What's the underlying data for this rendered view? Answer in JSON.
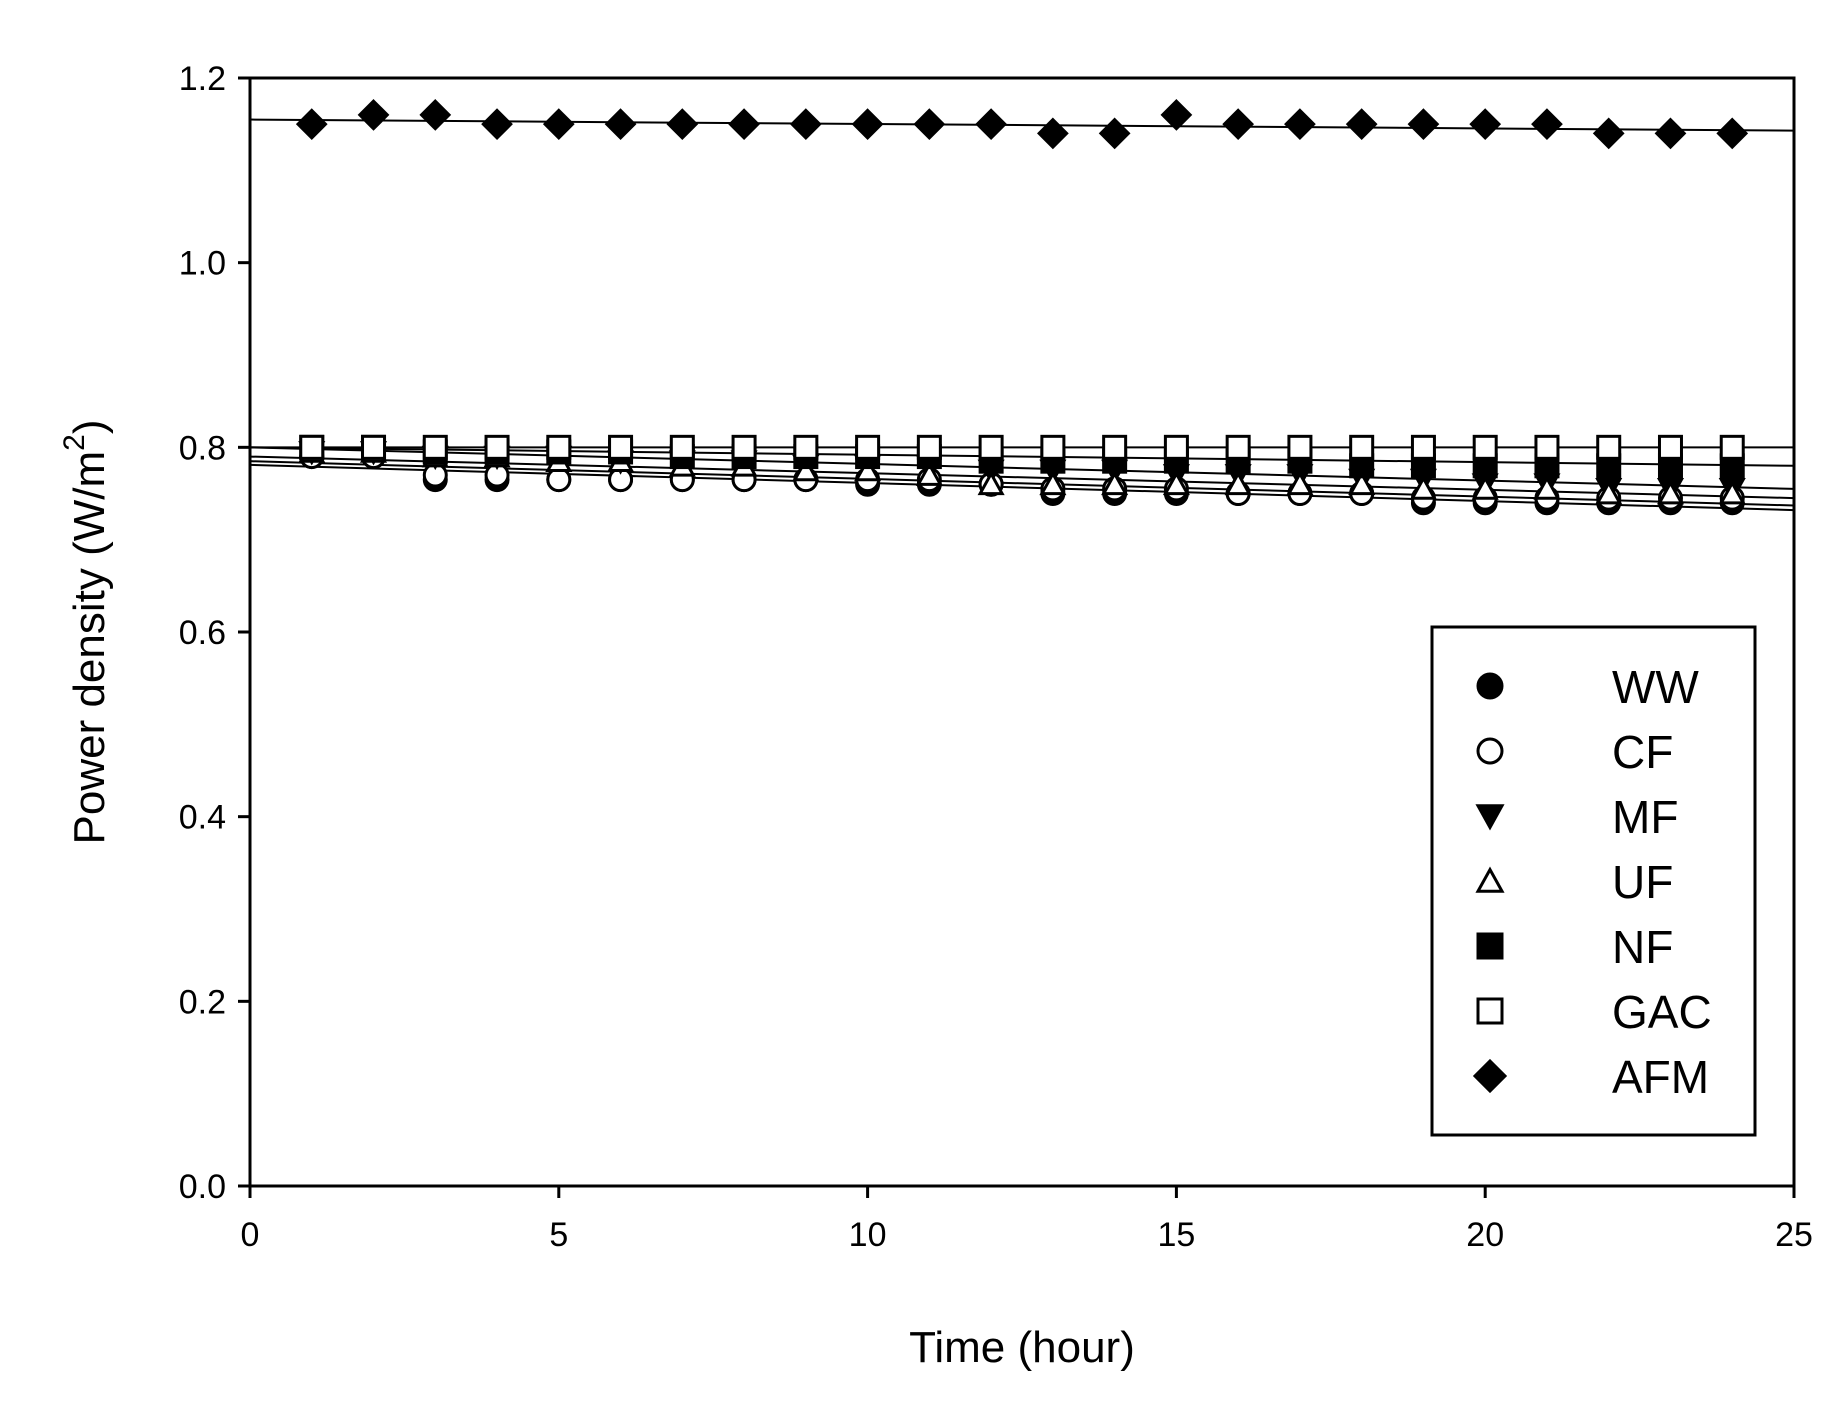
{
  "chart_data": {
    "type": "scatter",
    "xlabel": "Time (hour)",
    "ylabel": {
      "main": "Power density (W/m",
      "sup": "2",
      "close": ")"
    },
    "xlim": [
      0,
      25
    ],
    "ylim": [
      0.0,
      1.2
    ],
    "xticks": [
      "0",
      "5",
      "10",
      "15",
      "20",
      "25"
    ],
    "yticks": [
      "0.0",
      "0.2",
      "0.4",
      "0.6",
      "0.8",
      "1.0",
      "1.2"
    ],
    "grid": false,
    "legend_position": "lower-right",
    "series": [
      {
        "name": "WW",
        "marker": "filled-circle",
        "x": [
          1,
          2,
          3,
          4,
          5,
          6,
          7,
          8,
          9,
          10,
          11,
          12,
          13,
          14,
          15,
          16,
          17,
          18,
          19,
          20,
          21,
          22,
          23,
          24
        ],
        "y": [
          0.79,
          0.79,
          0.765,
          0.765,
          0.765,
          0.765,
          0.765,
          0.765,
          0.765,
          0.76,
          0.76,
          0.76,
          0.75,
          0.75,
          0.75,
          0.75,
          0.75,
          0.75,
          0.74,
          0.74,
          0.74,
          0.74,
          0.74,
          0.74
        ],
        "fit": [
          0.781,
          0.732
        ]
      },
      {
        "name": "CF",
        "marker": "open-circle",
        "x": [
          1,
          2,
          3,
          4,
          5,
          6,
          7,
          8,
          9,
          10,
          11,
          12,
          13,
          14,
          15,
          16,
          17,
          18,
          19,
          20,
          21,
          22,
          23,
          24
        ],
        "y": [
          0.79,
          0.79,
          0.77,
          0.77,
          0.765,
          0.765,
          0.765,
          0.765,
          0.765,
          0.765,
          0.765,
          0.76,
          0.755,
          0.755,
          0.755,
          0.75,
          0.75,
          0.75,
          0.745,
          0.745,
          0.745,
          0.745,
          0.745,
          0.745
        ],
        "fit": [
          0.785,
          0.737
        ]
      },
      {
        "name": "MF",
        "marker": "filled-triangle-down",
        "x": [
          1,
          2,
          3,
          4,
          5,
          6,
          7,
          8,
          9,
          10,
          11,
          12,
          13,
          14,
          15,
          16,
          17,
          18,
          19,
          20,
          21,
          22,
          23,
          24
        ],
        "y": [
          0.795,
          0.795,
          0.79,
          0.79,
          0.79,
          0.785,
          0.785,
          0.785,
          0.78,
          0.78,
          0.78,
          0.775,
          0.775,
          0.775,
          0.77,
          0.77,
          0.77,
          0.765,
          0.765,
          0.76,
          0.76,
          0.755,
          0.755,
          0.755
        ],
        "fit": [
          0.8,
          0.755
        ]
      },
      {
        "name": "UF",
        "marker": "open-triangle-up",
        "x": [
          1,
          2,
          3,
          4,
          5,
          6,
          7,
          8,
          9,
          10,
          11,
          12,
          13,
          14,
          15,
          16,
          17,
          18,
          19,
          20,
          21,
          22,
          23,
          24
        ],
        "y": [
          0.795,
          0.795,
          0.79,
          0.79,
          0.785,
          0.785,
          0.78,
          0.78,
          0.775,
          0.775,
          0.77,
          0.76,
          0.76,
          0.76,
          0.76,
          0.76,
          0.76,
          0.76,
          0.755,
          0.755,
          0.755,
          0.75,
          0.75,
          0.75
        ],
        "fit": [
          0.79,
          0.745
        ]
      },
      {
        "name": "NF",
        "marker": "filled-square",
        "x": [
          1,
          2,
          3,
          4,
          5,
          6,
          7,
          8,
          9,
          10,
          11,
          12,
          13,
          14,
          15,
          16,
          17,
          18,
          19,
          20,
          21,
          22,
          23,
          24
        ],
        "y": [
          0.8,
          0.8,
          0.795,
          0.795,
          0.795,
          0.795,
          0.79,
          0.79,
          0.79,
          0.79,
          0.79,
          0.785,
          0.785,
          0.785,
          0.785,
          0.785,
          0.785,
          0.78,
          0.78,
          0.78,
          0.78,
          0.78,
          0.78,
          0.78
        ],
        "fit": [
          0.8,
          0.78
        ]
      },
      {
        "name": "GAC",
        "marker": "open-square",
        "x": [
          1,
          2,
          3,
          4,
          5,
          6,
          7,
          8,
          9,
          10,
          11,
          12,
          13,
          14,
          15,
          16,
          17,
          18,
          19,
          20,
          21,
          22,
          23,
          24
        ],
        "y": [
          0.8,
          0.8,
          0.8,
          0.8,
          0.8,
          0.8,
          0.8,
          0.8,
          0.8,
          0.8,
          0.8,
          0.8,
          0.8,
          0.8,
          0.8,
          0.8,
          0.8,
          0.8,
          0.8,
          0.8,
          0.8,
          0.8,
          0.8,
          0.8
        ],
        "fit": [
          0.8,
          0.8
        ]
      },
      {
        "name": "AFM",
        "marker": "filled-diamond",
        "x": [
          1,
          2,
          3,
          4,
          5,
          6,
          7,
          8,
          9,
          10,
          11,
          12,
          13,
          14,
          15,
          16,
          17,
          18,
          19,
          20,
          21,
          22,
          23,
          24
        ],
        "y": [
          1.15,
          1.16,
          1.16,
          1.15,
          1.15,
          1.15,
          1.15,
          1.15,
          1.15,
          1.15,
          1.15,
          1.15,
          1.14,
          1.14,
          1.16,
          1.15,
          1.15,
          1.15,
          1.15,
          1.15,
          1.15,
          1.14,
          1.14,
          1.14
        ],
        "fit": [
          1.155,
          1.143
        ]
      }
    ]
  }
}
